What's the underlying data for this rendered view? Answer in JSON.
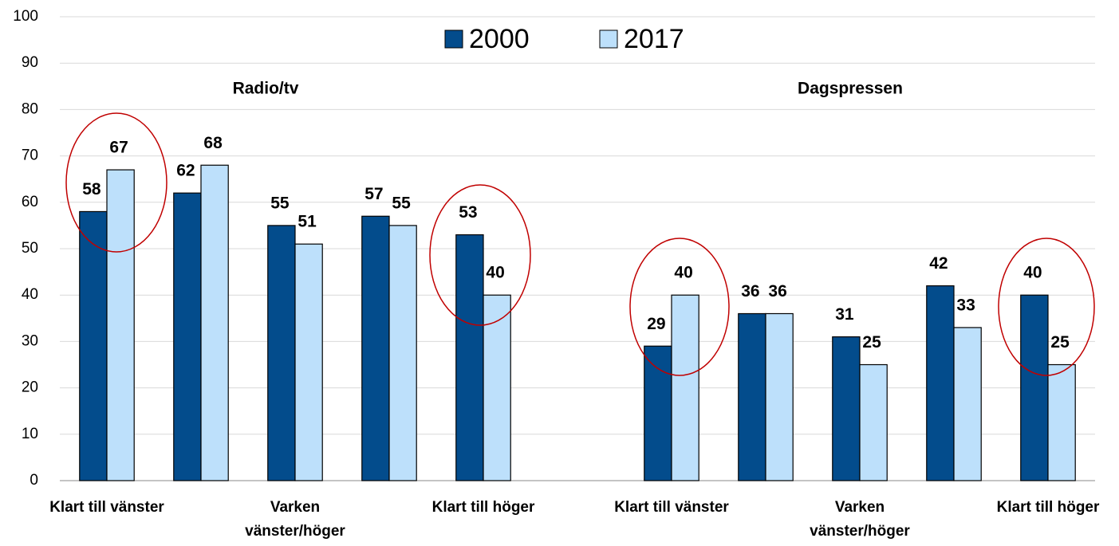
{
  "chart_data": {
    "type": "bar",
    "categories": [
      "Klart till vänster",
      null,
      "Varken\nvänster/höger",
      null,
      "Klart till höger",
      null,
      "Klart till vänster",
      null,
      "Varken\nvänster/höger",
      null,
      "Klart till höger"
    ],
    "group_labels": [
      "Radio/tv",
      "Dagspressen"
    ],
    "series": [
      {
        "name": "2000",
        "color": "#034c8c",
        "values": [
          58,
          62,
          55,
          57,
          53,
          null,
          29,
          36,
          31,
          42,
          40
        ]
      },
      {
        "name": "2017",
        "color": "#bde0fb",
        "values": [
          67,
          68,
          51,
          55,
          40,
          null,
          40,
          36,
          25,
          33,
          25
        ]
      }
    ],
    "ylim": [
      0,
      100
    ],
    "yticks": [
      0,
      10,
      20,
      30,
      40,
      50,
      60,
      70,
      80,
      90,
      100
    ],
    "grid": true
  }
}
